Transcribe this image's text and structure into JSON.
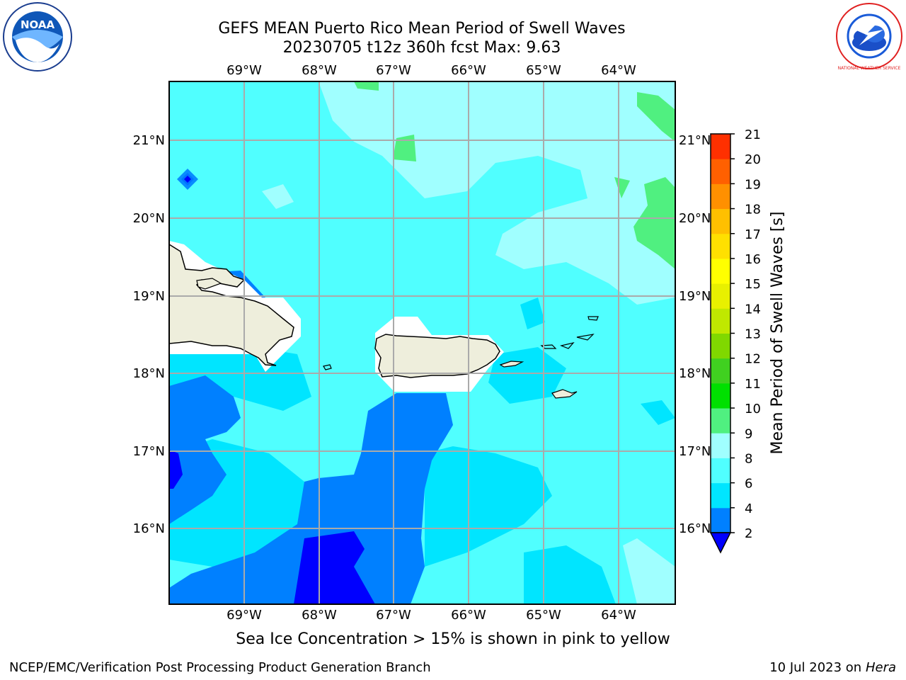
{
  "title_line1": "GEFS MEAN Puerto Rico Mean Period of Swell Waves",
  "title_line2": "20230705 t12z 360h fcst   Max: 9.63",
  "subnote": "Sea Ice Concentration > 15% is shown in pink to yellow",
  "footer_left": "NCEP/EMC/Verification Post Processing Product Generation Branch",
  "footer_right_prefix": "10 Jul 2023 on ",
  "footer_right_machine": "Hera",
  "logos": {
    "left": "NOAA",
    "right": "NATIONAL WEATHER SERVICE"
  },
  "map": {
    "lon_labels": [
      "69°W",
      "68°W",
      "67°W",
      "66°W",
      "65°W",
      "64°W"
    ],
    "lat_labels": [
      "21°N",
      "20°N",
      "19°N",
      "18°N",
      "17°N",
      "16°N"
    ],
    "colors": {
      "land": "#EEEEDC",
      "background_sea": "#50FFFF"
    }
  },
  "colorbar": {
    "label": "Mean Period of Swell Waves [s]",
    "ticks": [
      "2",
      "4",
      "6",
      "8",
      "9",
      "10",
      "11",
      "12",
      "13",
      "14",
      "15",
      "16",
      "17",
      "18",
      "19",
      "20",
      "21"
    ],
    "colors": [
      "#0080FF",
      "#00E5FF",
      "#50FFFF",
      "#A0FFFF",
      "#50F080",
      "#00E000",
      "#40D020",
      "#80D800",
      "#C0E800",
      "#E8F000",
      "#FFFF00",
      "#FFE000",
      "#FFC000",
      "#FF9000",
      "#FF6000",
      "#FF3000"
    ],
    "under_color": "#0000FF"
  }
}
